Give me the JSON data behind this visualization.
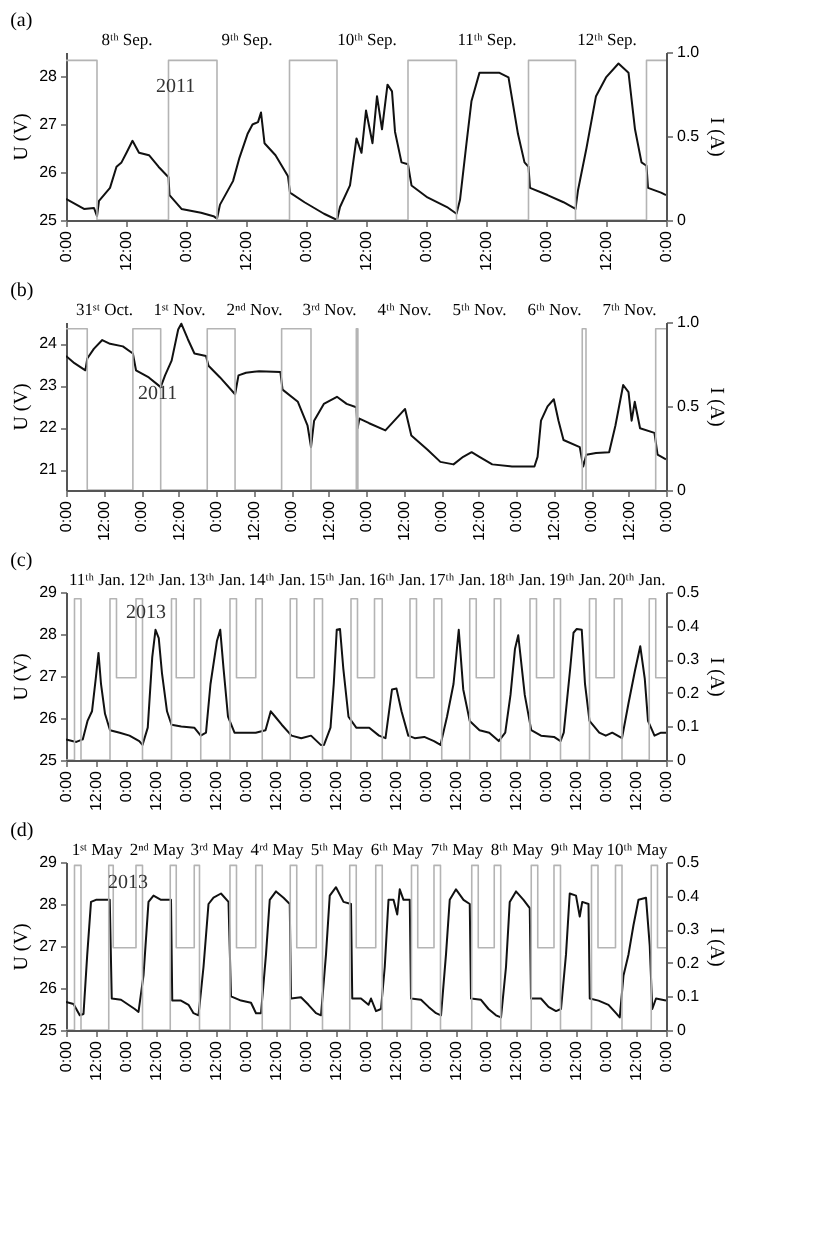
{
  "chart_data": [
    {
      "type": "line",
      "title": "(a)",
      "ylabel": "U (V)",
      "y2label": "I (A)",
      "annotations": [
        "2011"
      ],
      "xlim": [
        "2011-09-08T00:00",
        "2011-09-13T00:00"
      ],
      "ylim": [
        25,
        28.5
      ],
      "y2lim": [
        0,
        1
      ],
      "xticks": [
        {
          "value": "2011-09-08T00:00",
          "label": "0:00"
        },
        {
          "value": "2011-09-08T12:00",
          "label": "12:00"
        },
        {
          "value": "2011-09-09T00:00",
          "label": "0:00"
        },
        {
          "value": "2011-09-09T12:00",
          "label": "12:00"
        },
        {
          "value": "2011-09-10T00:00",
          "label": "0:00"
        },
        {
          "value": "2011-09-10T12:00",
          "label": "12:00"
        },
        {
          "value": "2011-09-11T00:00",
          "label": "0:00"
        },
        {
          "value": "2011-09-11T12:00",
          "label": "12:00"
        },
        {
          "value": "2011-09-12T00:00",
          "label": "0:00"
        },
        {
          "value": "2011-09-12T12:00",
          "label": "12:00"
        },
        {
          "value": "2011-09-13T00:00",
          "label": "0:00"
        }
      ],
      "x2lim": [
        "2011-09-08T00:00",
        "2011-09-13T00:00"
      ],
      "x2ticks": [
        {
          "value": "2011-09-08T12:00",
          "label": "8ᵗʰ Sep."
        },
        {
          "value": "2011-09-09T12:00",
          "label": "9ᵗʰ Sep."
        },
        {
          "value": "2011-09-10T12:00",
          "label": "10ᵗʰ Sep."
        },
        {
          "value": "2011-09-11T12:00",
          "label": "11ᵗʰ Sep."
        },
        {
          "value": "2011-09-12T12:00",
          "label": "12ᵗʰ Sep."
        }
      ],
      "yticks": [
        25,
        26,
        27,
        28
      ],
      "y2ticks": [
        0,
        0.5,
        {
          "value": 1,
          "label": "1.0"
        }
      ],
      "grid": false,
      "marker": "none",
      "line_style": "solid",
      "series": [
        {
          "color": "#111111",
          "x": [
            "2011-09-08T00:00",
            "2011-09-08T03:36",
            "2011-09-08T05:36",
            "2011-09-08T06:12",
            "2011-09-08T06:36",
            "2011-09-08T08:48",
            "2011-09-08T10:06",
            "2011-09-08T11:06",
            "2011-09-08T12:06",
            "2011-09-08T13:18",
            "2011-09-08T14:36",
            "2011-09-08T16:36",
            "2011-09-08T18:30",
            "2011-09-08T20:30",
            "2011-09-08T20:42",
            "2011-09-08T23:06",
            "2011-09-09T03:00",
            "2011-09-09T05:30",
            "2011-09-09T06:12",
            "2011-09-09T06:48",
            "2011-09-09T09:24",
            "2011-09-09T10:42",
            "2011-09-09T12:18",
            "2011-09-09T13:18",
            "2011-09-09T14:24",
            "2011-09-09T15:00",
            "2011-09-09T15:42",
            "2011-09-09T17:54",
            "2011-09-09T20:24",
            "2011-09-09T20:48",
            "2011-09-09T23:42",
            "2011-09-10T03:36",
            "2011-09-10T06:12",
            "2011-09-10T06:48",
            "2011-09-10T08:48",
            "2011-09-10T10:06",
            "2011-09-10T11:06",
            "2011-09-10T12:00",
            "2011-09-10T13:18",
            "2011-09-10T14:12",
            "2011-09-10T15:12",
            "2011-09-10T16:18",
            "2011-09-10T17:12",
            "2011-09-10T17:48",
            "2011-09-10T19:06",
            "2011-09-10T20:24",
            "2011-09-10T21:06",
            "2011-09-11T00:18",
            "2011-09-11T04:12",
            "2011-09-11T06:06",
            "2011-09-11T06:48",
            "2011-09-11T08:06",
            "2011-09-11T09:06",
            "2011-09-11T10:42",
            "2011-09-11T14:36",
            "2011-09-11T16:30",
            "2011-09-11T18:24",
            "2011-09-11T19:42",
            "2011-09-11T20:30",
            "2011-09-11T20:48",
            "2011-09-12T00:18",
            "2011-09-12T03:30",
            "2011-09-12T05:54",
            "2011-09-12T06:24",
            "2011-09-12T08:06",
            "2011-09-12T10:00",
            "2011-09-12T12:00",
            "2011-09-12T14:30",
            "2011-09-12T16:30",
            "2011-09-12T17:48",
            "2011-09-12T19:06",
            "2011-09-12T20:06",
            "2011-09-12T20:24",
            "2011-09-12T23:00",
            "2011-09-13T00:00"
          ],
          "values": [
            25.44,
            25.23,
            25.25,
            25.08,
            25.4,
            25.67,
            26.11,
            26.2,
            26.4,
            26.65,
            26.4,
            26.35,
            26.11,
            25.89,
            25.52,
            25.23,
            25.15,
            25.08,
            25.03,
            25.32,
            25.81,
            26.3,
            26.79,
            26.99,
            27.04,
            27.24,
            26.6,
            26.35,
            25.91,
            25.57,
            25.37,
            25.13,
            25.0,
            25.27,
            25.72,
            26.7,
            26.4,
            27.28,
            26.6,
            27.58,
            26.89,
            27.82,
            27.68,
            26.84,
            26.2,
            26.16,
            25.72,
            25.47,
            25.27,
            25.13,
            25.42,
            26.6,
            27.48,
            28.07,
            28.07,
            27.97,
            26.79,
            26.2,
            26.11,
            25.67,
            25.52,
            25.37,
            25.23,
            25.62,
            26.5,
            27.58,
            27.97,
            28.26,
            28.07,
            26.89,
            26.2,
            26.13,
            25.67,
            25.57,
            25.52
          ]
        },
        {
          "type": "step",
          "axis": "y2",
          "color": "#b4b4b4",
          "x": [
            "2011-09-08T00:00",
            "2011-09-08T06:12",
            "2011-09-08T20:30",
            "2011-09-09T06:12",
            "2011-09-09T20:42",
            "2011-09-10T06:12",
            "2011-09-10T20:24",
            "2011-09-11T06:06",
            "2011-09-11T20:30",
            "2011-09-12T05:54",
            "2011-09-12T20:06",
            "2011-09-13T00:00"
          ],
          "values": [
            0.95,
            0,
            0.95,
            0,
            0.95,
            0,
            0.95,
            0,
            0.95,
            0,
            0.95,
            0.95
          ]
        }
      ]
    },
    {
      "type": "line",
      "title": "(b)",
      "ylabel": "U (V)",
      "y2label": "I (A)",
      "annotations": [
        "2011"
      ],
      "xlim": [
        "2011-10-31T00:00",
        "2011-11-08T00:00"
      ],
      "ylim": [
        20.5,
        24.5
      ],
      "y2lim": [
        0,
        1
      ],
      "xticks": [
        {
          "value": "2011-10-31T00:00",
          "label": "0:00"
        },
        {
          "value": "2011-10-31T12:00",
          "label": "12:00"
        },
        {
          "value": "2011-11-01T00:00",
          "label": "0:00"
        },
        {
          "value": "2011-11-01T12:00",
          "label": "12:00"
        },
        {
          "value": "2011-11-02T00:00",
          "label": "0:00"
        },
        {
          "value": "2011-11-02T12:00",
          "label": "12:00"
        },
        {
          "value": "2011-11-03T00:00",
          "label": "0:00"
        },
        {
          "value": "2011-11-03T12:00",
          "label": "12:00"
        },
        {
          "value": "2011-11-04T00:00",
          "label": "0:00"
        },
        {
          "value": "2011-11-04T12:00",
          "label": "12:00"
        },
        {
          "value": "2011-11-05T00:00",
          "label": "0:00"
        },
        {
          "value": "2011-11-05T12:00",
          "label": "12:00"
        },
        {
          "value": "2011-11-06T00:00",
          "label": "0:00"
        },
        {
          "value": "2011-11-06T12:00",
          "label": "12:00"
        },
        {
          "value": "2011-11-07T00:00",
          "label": "0:00"
        },
        {
          "value": "2011-11-07T12:00",
          "label": "12:00"
        },
        {
          "value": "2011-11-08T00:00",
          "label": "0:00"
        }
      ],
      "x2lim": [
        "2011-10-31T00:00",
        "2011-11-08T00:00"
      ],
      "x2ticks": [
        {
          "value": "2011-10-31T12:00",
          "label": "31ˢᵗ Oct."
        },
        {
          "value": "2011-11-01T12:00",
          "label": "1ˢᵗ Nov."
        },
        {
          "value": "2011-11-02T12:00",
          "label": "2ⁿᵈ Nov."
        },
        {
          "value": "2011-11-03T12:00",
          "label": "3ʳᵈ Nov."
        },
        {
          "value": "2011-11-04T12:00",
          "label": "4ᵗʰ Nov."
        },
        {
          "value": "2011-11-05T12:00",
          "label": "5ᵗʰ Nov."
        },
        {
          "value": "2011-11-06T12:00",
          "label": "6ᵗʰ Nov."
        },
        {
          "value": "2011-11-07T12:00",
          "label": "7ᵗʰ Nov."
        }
      ],
      "yticks": [
        21,
        22,
        23,
        24
      ],
      "y2ticks": [
        0,
        0.5,
        {
          "value": 1,
          "label": "1.0"
        }
      ],
      "grid": false,
      "marker": "none",
      "line_style": "solid",
      "series": [
        {
          "color": "#111111",
          "x": [
            "2011-10-31T00:00",
            "2011-10-31T02:42",
            "2011-10-31T06:12",
            "2011-10-31T06:48",
            "2011-10-31T08:54",
            "2011-10-31T11:36",
            "2011-10-31T14:06",
            "2011-10-31T18:12",
            "2011-10-31T21:24",
            "2011-10-31T22:24",
            "2011-11-01T02:30",
            "2011-11-01T06:18",
            "2011-11-01T07:42",
            "2011-11-01T09:48",
            "2011-11-01T11:54",
            "2011-11-01T12:54",
            "2011-11-01T15:00",
            "2011-11-01T17:06",
            "2011-11-01T20:48",
            "2011-11-01T21:36",
            "2011-11-02T01:18",
            "2011-11-02T06:06",
            "2011-11-02T07:12",
            "2011-11-02T09:36",
            "2011-11-02T13:48",
            "2011-11-02T20:36",
            "2011-11-02T21:18",
            "2011-11-03T02:12",
            "2011-11-03T05:18",
            "2011-11-03T06:24",
            "2011-11-03T07:24",
            "2011-11-03T10:30",
            "2011-11-03T14:42",
            "2011-11-03T17:48",
            "2011-11-03T20:54",
            "2011-11-03T21:18",
            "2011-11-03T21:54",
            "2011-11-04T01:00",
            "2011-11-04T06:12",
            "2011-11-04T10:24",
            "2011-11-04T12:30",
            "2011-11-04T14:30",
            "2011-11-04T19:42",
            "2011-11-04T23:48",
            "2011-11-05T04:00",
            "2011-11-05T07:06",
            "2011-11-05T09:48",
            "2011-11-05T12:18",
            "2011-11-05T16:24",
            "2011-11-05T22:42",
            "2011-11-06T02:48",
            "2011-11-06T05:54",
            "2011-11-06T06:54",
            "2011-11-06T08:00",
            "2011-11-06T10:06",
            "2011-11-06T12:06",
            "2011-11-06T13:36",
            "2011-11-06T15:12",
            "2011-11-06T20:24",
            "2011-11-06T21:30",
            "2011-11-06T22:30",
            "2011-11-07T01:36",
            "2011-11-07T05:48",
            "2011-11-07T07:48",
            "2011-11-07T10:18",
            "2011-11-07T12:00",
            "2011-11-07T13:00",
            "2011-11-07T14:00",
            "2011-11-07T15:42",
            "2011-11-07T20:18",
            "2011-11-07T21:18",
            "2011-11-08T00:00"
          ],
          "values": [
            23.69,
            23.52,
            23.35,
            23.63,
            23.86,
            24.07,
            23.98,
            23.92,
            23.75,
            23.35,
            23.18,
            22.95,
            23.23,
            23.58,
            24.32,
            24.46,
            24.09,
            23.75,
            23.69,
            23.46,
            23.18,
            22.78,
            23.23,
            23.29,
            23.33,
            23.31,
            22.89,
            22.6,
            22.03,
            21.52,
            22.15,
            22.55,
            22.72,
            22.55,
            22.47,
            21.97,
            22.2,
            22.09,
            21.92,
            22.26,
            22.43,
            21.8,
            21.46,
            21.17,
            21.11,
            21.29,
            21.4,
            21.29,
            21.11,
            21.06,
            21.06,
            21.06,
            21.29,
            22.15,
            22.49,
            22.66,
            22.15,
            21.69,
            21.52,
            21.06,
            21.34,
            21.38,
            21.4,
            22.03,
            23.0,
            22.83,
            22.15,
            22.6,
            21.97,
            21.86,
            21.34,
            21.23
          ]
        },
        {
          "type": "step",
          "axis": "y2",
          "color": "#b4b4b4",
          "x": [
            "2011-10-31T00:00",
            "2011-10-31T06:48",
            "2011-10-31T21:24",
            "2011-11-01T06:18",
            "2011-11-01T21:12",
            "2011-11-02T06:06",
            "2011-11-02T21:00",
            "2011-11-03T06:24",
            "2011-11-03T20:54",
            "2011-11-03T21:24",
            "2011-11-06T21:12",
            "2011-11-06T22:24",
            "2011-11-07T20:42",
            "2011-11-08T00:00"
          ],
          "values": [
            0.96,
            0,
            0.96,
            0,
            0.96,
            0,
            0.96,
            0,
            0.96,
            0,
            0.96,
            0,
            0.96,
            0.96
          ]
        }
      ]
    },
    {
      "type": "line",
      "title": "(c)",
      "ylabel": "U (V)",
      "y2label": "I (A)",
      "annotations": [
        "2013"
      ],
      "xlim": [
        "2013-01-11T00:00",
        "2013-01-21T00:00"
      ],
      "ylim": [
        25,
        29
      ],
      "y2lim": [
        0,
        0.5
      ],
      "xticks": [
        {
          "value": "2013-01-11T00:00",
          "label": "0:00"
        },
        {
          "value": "2013-01-11T12:00",
          "label": "12:00"
        },
        {
          "value": "2013-01-12T00:00",
          "label": "0:00"
        },
        {
          "value": "2013-01-12T12:00",
          "label": "12:00"
        },
        {
          "value": "2013-01-13T00:00",
          "label": "0:00"
        },
        {
          "value": "2013-01-13T12:00",
          "label": "12:00"
        },
        {
          "value": "2013-01-14T00:00",
          "label": "0:00"
        },
        {
          "value": "2013-01-14T12:00",
          "label": "12:00"
        },
        {
          "value": "2013-01-15T00:00",
          "label": "0:00"
        },
        {
          "value": "2013-01-15T12:00",
          "label": "12:00"
        },
        {
          "value": "2013-01-16T00:00",
          "label": "0:00"
        },
        {
          "value": "2013-01-16T12:00",
          "label": "12:00"
        },
        {
          "value": "2013-01-17T00:00",
          "label": "0:00"
        },
        {
          "value": "2013-01-17T12:00",
          "label": "12:00"
        },
        {
          "value": "2013-01-18T00:00",
          "label": "0:00"
        },
        {
          "value": "2013-01-18T12:00",
          "label": "12:00"
        },
        {
          "value": "2013-01-19T00:00",
          "label": "0:00"
        },
        {
          "value": "2013-01-19T12:00",
          "label": "12:00"
        },
        {
          "value": "2013-01-20T00:00",
          "label": "0:00"
        },
        {
          "value": "2013-01-20T12:00",
          "label": "12:00"
        },
        {
          "value": "2013-01-21T00:00",
          "label": "0:00"
        }
      ],
      "x2lim": [
        "2013-01-11T00:00",
        "2013-01-21T00:00"
      ],
      "x2ticks": [
        {
          "value": "2013-01-11T12:00",
          "label": "11ᵗʰ Jan."
        },
        {
          "value": "2013-01-12T12:00",
          "label": "12ᵗʰ Jan."
        },
        {
          "value": "2013-01-13T12:00",
          "label": "13ᵗʰ Jan."
        },
        {
          "value": "2013-01-14T12:00",
          "label": "14ᵗʰ Jan."
        },
        {
          "value": "2013-01-15T12:00",
          "label": "15ᵗʰ Jan."
        },
        {
          "value": "2013-01-16T12:00",
          "label": "16ᵗʰ Jan."
        },
        {
          "value": "2013-01-17T12:00",
          "label": "17ᵗʰ Jan."
        },
        {
          "value": "2013-01-18T12:00",
          "label": "18ᵗʰ Jan."
        },
        {
          "value": "2013-01-19T12:00",
          "label": "19ᵗʰ Jan."
        },
        {
          "value": "2013-01-20T12:00",
          "label": "20ᵗʰ Jan."
        }
      ],
      "yticks": [
        25,
        26,
        27,
        28,
        29
      ],
      "y2ticks": [
        0,
        0.1,
        0.2,
        0.3,
        0.4,
        0.5
      ],
      "grid": false,
      "marker": "none",
      "line_style": "solid",
      "series": [
        {
          "color": "#111111",
          "x": [
            "2013-01-11T00:00",
            "2013-01-11T04:06",
            "2013-01-11T06:42",
            "2013-01-11T08:36",
            "2013-01-11T10:24",
            "2013-01-11T11:54",
            "2013-01-11T13:00",
            "2013-01-11T14:00",
            "2013-01-11T15:36",
            "2013-01-11T17:36",
            "2013-01-11T21:30",
            "2013-01-12T01:24",
            "2013-01-12T05:18",
            "2013-01-12T06:36",
            "2013-01-12T08:42",
            "2013-01-12T10:30",
            "2013-01-12T11:48",
            "2013-01-12T13:06",
            "2013-01-12T14:24",
            "2013-01-12T16:24",
            "2013-01-12T18:12",
            "2013-01-12T22:06",
            "2013-01-13T03:18",
            "2013-01-13T05:54",
            "2013-01-13T08:00",
            "2013-01-13T09:48",
            "2013-01-13T12:24",
            "2013-01-13T13:42",
            "2013-01-13T15:00",
            "2013-01-13T16:48",
            "2013-01-13T19:24",
            "2013-01-14T00:06",
            "2013-01-14T03:54",
            "2013-01-14T07:48",
            "2013-01-14T09:54",
            "2013-01-14T11:42",
            "2013-01-14T14:18",
            "2013-01-14T18:12",
            "2013-01-14T22:06",
            "2013-01-15T02:00",
            "2013-01-15T05:54",
            "2013-01-15T07:12",
            "2013-01-15T09:48",
            "2013-01-15T11:06",
            "2013-01-15T12:18",
            "2013-01-15T13:36",
            "2013-01-15T14:54",
            "2013-01-15T17:00",
            "2013-01-15T20:06",
            "2013-01-16T01:18",
            "2013-01-16T05:12",
            "2013-01-16T07:48",
            "2013-01-16T10:24",
            "2013-01-16T12:12",
            "2013-01-16T14:12",
            "2013-01-16T16:54",
            "2013-01-16T19:30",
            "2013-01-16T23:18",
            "2013-01-17T03:12",
            "2013-01-17T05:48",
            "2013-01-17T08:24",
            "2013-01-17T11:00",
            "2013-01-17T13:06",
            "2013-01-17T14:54",
            "2013-01-17T17:30",
            "2013-01-17T21:24",
            "2013-01-18T01:18",
            "2013-01-18T05:06",
            "2013-01-18T07:42",
            "2013-01-18T09:48",
            "2013-01-18T11:36",
            "2013-01-18T12:54",
            "2013-01-18T15:30",
            "2013-01-18T18:06",
            "2013-01-18T22:00",
            "2013-01-19T03:12",
            "2013-01-19T05:48",
            "2013-01-19T07:06",
            "2013-01-19T09:42",
            "2013-01-19T11:00",
            "2013-01-19T12:18",
            "2013-01-19T14:18",
            "2013-01-19T15:36",
            "2013-01-19T17:24",
            "2013-01-19T21:18",
            "2013-01-19T23:54",
            "2013-01-20T02:30",
            "2013-01-20T06:24",
            "2013-01-20T09:00",
            "2013-01-20T11:36",
            "2013-01-20T13:42",
            "2013-01-20T15:30",
            "2013-01-20T16:48",
            "2013-01-20T19:24",
            "2013-01-20T22:00",
            "2013-01-21T00:00"
          ],
          "values": [
            25.49,
            25.43,
            25.49,
            25.93,
            26.16,
            26.94,
            27.55,
            26.81,
            26.1,
            25.71,
            25.65,
            25.58,
            25.45,
            25.36,
            25.77,
            27.45,
            28.1,
            27.9,
            27.06,
            26.16,
            25.84,
            25.8,
            25.77,
            25.58,
            25.65,
            26.81,
            27.84,
            28.1,
            27.19,
            26.03,
            25.65,
            25.65,
            25.65,
            25.71,
            26.16,
            26.03,
            25.84,
            25.58,
            25.52,
            25.58,
            25.36,
            25.36,
            25.77,
            26.81,
            28.1,
            28.12,
            27.19,
            26.03,
            25.77,
            25.77,
            25.58,
            25.52,
            26.68,
            26.7,
            26.16,
            25.58,
            25.52,
            25.55,
            25.45,
            25.36,
            26.03,
            26.81,
            28.1,
            26.68,
            25.93,
            25.71,
            25.65,
            25.45,
            25.65,
            26.55,
            27.65,
            27.97,
            26.55,
            25.71,
            25.58,
            25.55,
            25.45,
            25.65,
            27.19,
            28.03,
            28.12,
            28.1,
            26.81,
            25.93,
            25.65,
            25.58,
            25.65,
            25.52,
            26.35,
            27.13,
            27.71,
            26.94,
            25.93,
            25.58,
            25.65,
            25.65
          ]
        },
        {
          "type": "step",
          "axis": "y2",
          "color": "#b4b4b4",
          "x": [
            "2013-01-11T00:00",
            "2013-01-11T03:24",
            "2013-01-11T06:00",
            "2013-01-11T17:36",
            "2013-01-11T20:12",
            "2013-01-12T04:00",
            "2013-01-12T06:36",
            "2013-01-12T18:12",
            "2013-01-12T20:06",
            "2013-01-13T03:18",
            "2013-01-13T05:54",
            "2013-01-13T17:36",
            "2013-01-13T20:12",
            "2013-01-14T03:54",
            "2013-01-14T06:30",
            "2013-01-14T17:42",
            "2013-01-14T20:18",
            "2013-01-15T03:18",
            "2013-01-15T06:36",
            "2013-01-15T18:00",
            "2013-01-15T20:36",
            "2013-01-16T03:24",
            "2013-01-16T06:30",
            "2013-01-16T17:36",
            "2013-01-16T20:12",
            "2013-01-17T03:12",
            "2013-01-17T06:18",
            "2013-01-17T17:30",
            "2013-01-17T20:06",
            "2013-01-18T03:18",
            "2013-01-18T05:54",
            "2013-01-18T17:36",
            "2013-01-18T20:12",
            "2013-01-19T03:12",
            "2013-01-19T05:48",
            "2013-01-19T17:24",
            "2013-01-19T20:00",
            "2013-01-20T03:18",
            "2013-01-20T06:24",
            "2013-01-20T17:18",
            "2013-01-20T19:54",
            "2013-01-21T00:00"
          ],
          "values": [
            0,
            0.48,
            0,
            0.48,
            0.245,
            0.48,
            0,
            0.48,
            0.245,
            0.48,
            0,
            0.48,
            0.245,
            0.48,
            0,
            0.48,
            0.245,
            0.48,
            0,
            0.48,
            0.245,
            0.48,
            0,
            0.48,
            0.245,
            0.48,
            0,
            0.48,
            0.245,
            0.48,
            0,
            0.48,
            0.245,
            0.48,
            0,
            0.48,
            0.245,
            0.48,
            0,
            0.48,
            0.245,
            0.245
          ]
        }
      ]
    },
    {
      "type": "line",
      "title": "(d)",
      "ylabel": "U (V)",
      "y2label": "I (A)",
      "annotations": [
        "2013"
      ],
      "xlim": [
        "2013-05-01T00:00",
        "2013-05-11T00:00"
      ],
      "ylim": [
        25,
        29
      ],
      "y2lim": [
        0,
        0.5
      ],
      "xticks": [
        {
          "value": "2013-05-01T00:00",
          "label": "0:00"
        },
        {
          "value": "2013-05-01T12:00",
          "label": "12:00"
        },
        {
          "value": "2013-05-02T00:00",
          "label": "0:00"
        },
        {
          "value": "2013-05-02T12:00",
          "label": "12:00"
        },
        {
          "value": "2013-05-03T00:00",
          "label": "0:00"
        },
        {
          "value": "2013-05-03T12:00",
          "label": "12:00"
        },
        {
          "value": "2013-05-04T00:00",
          "label": "0:00"
        },
        {
          "value": "2013-05-04T12:00",
          "label": "12:00"
        },
        {
          "value": "2013-05-05T00:00",
          "label": "0:00"
        },
        {
          "value": "2013-05-05T12:00",
          "label": "12:00"
        },
        {
          "value": "2013-05-06T00:00",
          "label": "0:00"
        },
        {
          "value": "2013-05-06T12:00",
          "label": "12:00"
        },
        {
          "value": "2013-05-07T00:00",
          "label": "0:00"
        },
        {
          "value": "2013-05-07T12:00",
          "label": "12:00"
        },
        {
          "value": "2013-05-08T00:00",
          "label": "0:00"
        },
        {
          "value": "2013-05-08T12:00",
          "label": "12:00"
        },
        {
          "value": "2013-05-09T00:00",
          "label": "0:00"
        },
        {
          "value": "2013-05-09T12:00",
          "label": "12:00"
        },
        {
          "value": "2013-05-10T00:00",
          "label": "0:00"
        },
        {
          "value": "2013-05-10T12:00",
          "label": "12:00"
        },
        {
          "value": "2013-05-11T00:00",
          "label": "0:00"
        }
      ],
      "x2lim": [
        "2013-05-01T00:00",
        "2013-05-11T00:00"
      ],
      "x2ticks": [
        {
          "value": "2013-05-01T12:00",
          "label": "1ˢᵗ May"
        },
        {
          "value": "2013-05-02T12:00",
          "label": "2ⁿᵈ May"
        },
        {
          "value": "2013-05-03T12:00",
          "label": "3ʳᵈ May"
        },
        {
          "value": "2013-05-04T12:00",
          "label": "4ʳᵈ May"
        },
        {
          "value": "2013-05-05T12:00",
          "label": "5ᵗʰ May"
        },
        {
          "value": "2013-05-06T12:00",
          "label": "6ᵗʰ May"
        },
        {
          "value": "2013-05-07T12:00",
          "label": "7ᵗʰ May"
        },
        {
          "value": "2013-05-08T12:00",
          "label": "8ᵗʰ May"
        },
        {
          "value": "2013-05-09T12:00",
          "label": "9ᵗʰ May"
        },
        {
          "value": "2013-05-10T12:00",
          "label": "10ᵗʰ May"
        }
      ],
      "yticks": [
        25,
        26,
        27,
        28,
        29
      ],
      "y2ticks": [
        0,
        0.1,
        0.2,
        0.3,
        0.4,
        0.5
      ],
      "grid": false,
      "marker": "none",
      "line_style": "solid",
      "series": [
        {
          "color": "#111111",
          "x": [
            "2013-05-01T00:00",
            "2013-05-01T03:00",
            "2013-05-01T05:30",
            "2013-05-01T07:00",
            "2013-05-01T08:30",
            "2013-05-01T10:00",
            "2013-05-01T12:00",
            "2013-05-01T17:30",
            "2013-05-01T18:18",
            "2013-05-01T22:00",
            "2013-05-02T03:30",
            "2013-05-02T05:00",
            "2013-05-02T07:00",
            "2013-05-02T09:00",
            "2013-05-02T11:00",
            "2013-05-02T14:00",
            "2013-05-02T18:00",
            "2013-05-02T18:30",
            "2013-05-02T22:00",
            "2013-05-03T01:00",
            "2013-05-03T03:00",
            "2013-05-03T05:00",
            "2013-05-03T07:00",
            "2013-05-03T09:00",
            "2013-05-03T11:00",
            "2013-05-03T14:00",
            "2013-05-03T17:00",
            "2013-05-03T18:00",
            "2013-05-03T22:00",
            "2013-05-04T02:00",
            "2013-05-04T04:00",
            "2013-05-04T06:00",
            "2013-05-04T08:00",
            "2013-05-04T09:30",
            "2013-05-04T12:00",
            "2013-05-04T15:00",
            "2013-05-04T17:30",
            "2013-05-04T18:00",
            "2013-05-04T22:00",
            "2013-05-05T01:00",
            "2013-05-05T04:00",
            "2013-05-05T06:00",
            "2013-05-05T08:00",
            "2013-05-05T09:30",
            "2013-05-05T12:00",
            "2013-05-05T15:00",
            "2013-05-05T18:00",
            "2013-05-05T18:30",
            "2013-05-05T22:00",
            "2013-05-06T01:00",
            "2013-05-06T02:00",
            "2013-05-06T04:00",
            "2013-05-06T06:00",
            "2013-05-06T07:30",
            "2013-05-06T09:00",
            "2013-05-06T11:00",
            "2013-05-06T12:30",
            "2013-05-06T13:30",
            "2013-05-06T15:00",
            "2013-05-06T17:30",
            "2013-05-06T18:00",
            "2013-05-06T22:00",
            "2013-05-07T01:00",
            "2013-05-07T04:00",
            "2013-05-07T06:00",
            "2013-05-07T08:00",
            "2013-05-07T09:30",
            "2013-05-07T12:00",
            "2013-05-07T15:00",
            "2013-05-07T17:30",
            "2013-05-07T18:00",
            "2013-05-07T22:00",
            "2013-05-08T01:00",
            "2013-05-08T04:00",
            "2013-05-08T06:00",
            "2013-05-08T08:00",
            "2013-05-08T09:30",
            "2013-05-08T12:00",
            "2013-05-08T15:00",
            "2013-05-08T17:30",
            "2013-05-08T18:00",
            "2013-05-08T22:00",
            "2013-05-09T01:00",
            "2013-05-09T04:00",
            "2013-05-09T06:00",
            "2013-05-09T08:00",
            "2013-05-09T09:30",
            "2013-05-09T12:00",
            "2013-05-09T13:30",
            "2013-05-09T14:30",
            "2013-05-09T17:00",
            "2013-05-09T17:30",
            "2013-05-09T21:00",
            "2013-05-10T01:00",
            "2013-05-10T04:00",
            "2013-05-10T05:30",
            "2013-05-10T07:00",
            "2013-05-10T09:00",
            "2013-05-10T11:00",
            "2013-05-10T13:00",
            "2013-05-10T16:00",
            "2013-05-10T17:30",
            "2013-05-10T18:30",
            "2013-05-10T20:00",
            "2013-05-11T00:00"
          ],
          "values": [
            25.67,
            25.62,
            25.35,
            25.38,
            26.8,
            28.05,
            28.1,
            28.1,
            25.75,
            25.72,
            25.5,
            25.43,
            26.3,
            28.05,
            28.2,
            28.1,
            28.1,
            25.7,
            25.7,
            25.6,
            25.4,
            25.35,
            26.5,
            28.0,
            28.15,
            28.25,
            28.05,
            25.8,
            25.7,
            25.65,
            25.4,
            25.4,
            26.8,
            28.1,
            28.3,
            28.15,
            28.0,
            25.75,
            25.78,
            25.6,
            25.4,
            25.35,
            26.8,
            28.2,
            28.4,
            28.05,
            28.0,
            25.75,
            25.75,
            25.6,
            25.75,
            25.45,
            25.5,
            26.5,
            28.1,
            28.1,
            27.75,
            28.35,
            28.1,
            28.1,
            25.75,
            25.72,
            25.55,
            25.4,
            25.35,
            26.8,
            28.1,
            28.35,
            28.1,
            28.0,
            25.75,
            25.72,
            25.5,
            25.35,
            25.3,
            26.5,
            28.05,
            28.3,
            28.1,
            27.9,
            25.75,
            25.75,
            25.55,
            25.45,
            25.5,
            26.8,
            28.25,
            28.2,
            27.7,
            28.05,
            28.0,
            25.75,
            25.7,
            25.6,
            25.4,
            25.3,
            26.3,
            26.8,
            27.5,
            28.1,
            28.15,
            27.0,
            25.5,
            25.75,
            25.7
          ]
        },
        {
          "type": "step",
          "axis": "y2",
          "color": "#b4b4b4",
          "x": [
            "2013-05-01T00:00",
            "2013-05-01T03:24",
            "2013-05-01T06:00",
            "2013-05-01T17:06",
            "2013-05-01T18:54",
            "2013-05-02T04:00",
            "2013-05-02T06:36",
            "2013-05-02T17:42",
            "2013-05-02T20:06",
            "2013-05-03T03:18",
            "2013-05-03T05:24",
            "2013-05-03T17:36",
            "2013-05-03T20:12",
            "2013-05-04T03:54",
            "2013-05-04T06:30",
            "2013-05-04T17:42",
            "2013-05-04T20:18",
            "2013-05-05T04:06",
            "2013-05-05T06:36",
            "2013-05-05T17:30",
            "2013-05-05T20:06",
            "2013-05-06T03:54",
            "2013-05-06T06:30",
            "2013-05-06T18:12",
            "2013-05-06T20:42",
            "2013-05-07T03:12",
            "2013-05-07T05:48",
            "2013-05-07T18:18",
            "2013-05-07T20:54",
            "2013-05-08T03:18",
            "2013-05-08T05:54",
            "2013-05-08T18:06",
            "2013-05-08T20:42",
            "2013-05-09T03:12",
            "2013-05-09T05:48",
            "2013-05-09T18:12",
            "2013-05-09T20:48",
            "2013-05-10T03:48",
            "2013-05-10T06:24",
            "2013-05-10T18:06",
            "2013-05-10T20:36",
            "2013-05-11T00:00"
          ],
          "values": [
            0,
            0.49,
            0,
            0.49,
            0.245,
            0.49,
            0,
            0.49,
            0.245,
            0.49,
            0,
            0.49,
            0.245,
            0.49,
            0,
            0.49,
            0.245,
            0.49,
            0,
            0.49,
            0.245,
            0.49,
            0,
            0.49,
            0.245,
            0.49,
            0,
            0.49,
            0.245,
            0.49,
            0,
            0.49,
            0.245,
            0.49,
            0,
            0.49,
            0.245,
            0.49,
            0,
            0.49,
            0.245,
            0.245
          ]
        }
      ]
    }
  ]
}
